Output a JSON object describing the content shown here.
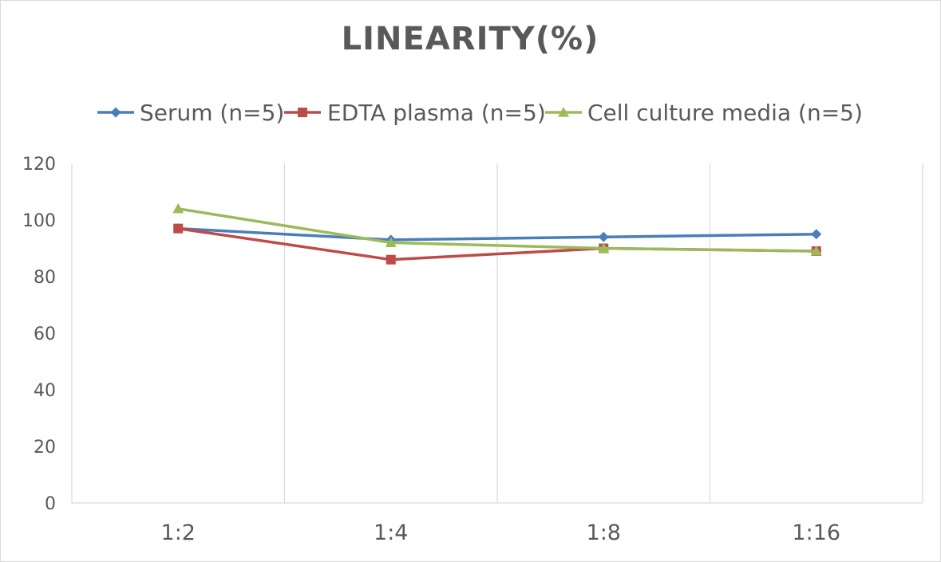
{
  "chart_data": {
    "type": "line",
    "title": "LINEARITY(%)",
    "categories": [
      "1:2",
      "1:4",
      "1:8",
      "1:16"
    ],
    "series": [
      {
        "name": "Serum (n=5)",
        "values": [
          97,
          93,
          94,
          95
        ],
        "color": "#4a7ebb",
        "marker": "diamond"
      },
      {
        "name": "EDTA plasma (n=5)",
        "values": [
          97,
          86,
          90,
          89
        ],
        "color": "#be4b48",
        "marker": "square"
      },
      {
        "name": "Cell culture media (n=5)",
        "values": [
          104,
          92,
          90,
          89
        ],
        "color": "#9bbb59",
        "marker": "triangle"
      }
    ],
    "ylim": [
      0,
      120
    ],
    "yticks": [
      "0",
      "20",
      "40",
      "60",
      "80",
      "100",
      "120"
    ],
    "grid": "vertical",
    "legend": "top"
  }
}
